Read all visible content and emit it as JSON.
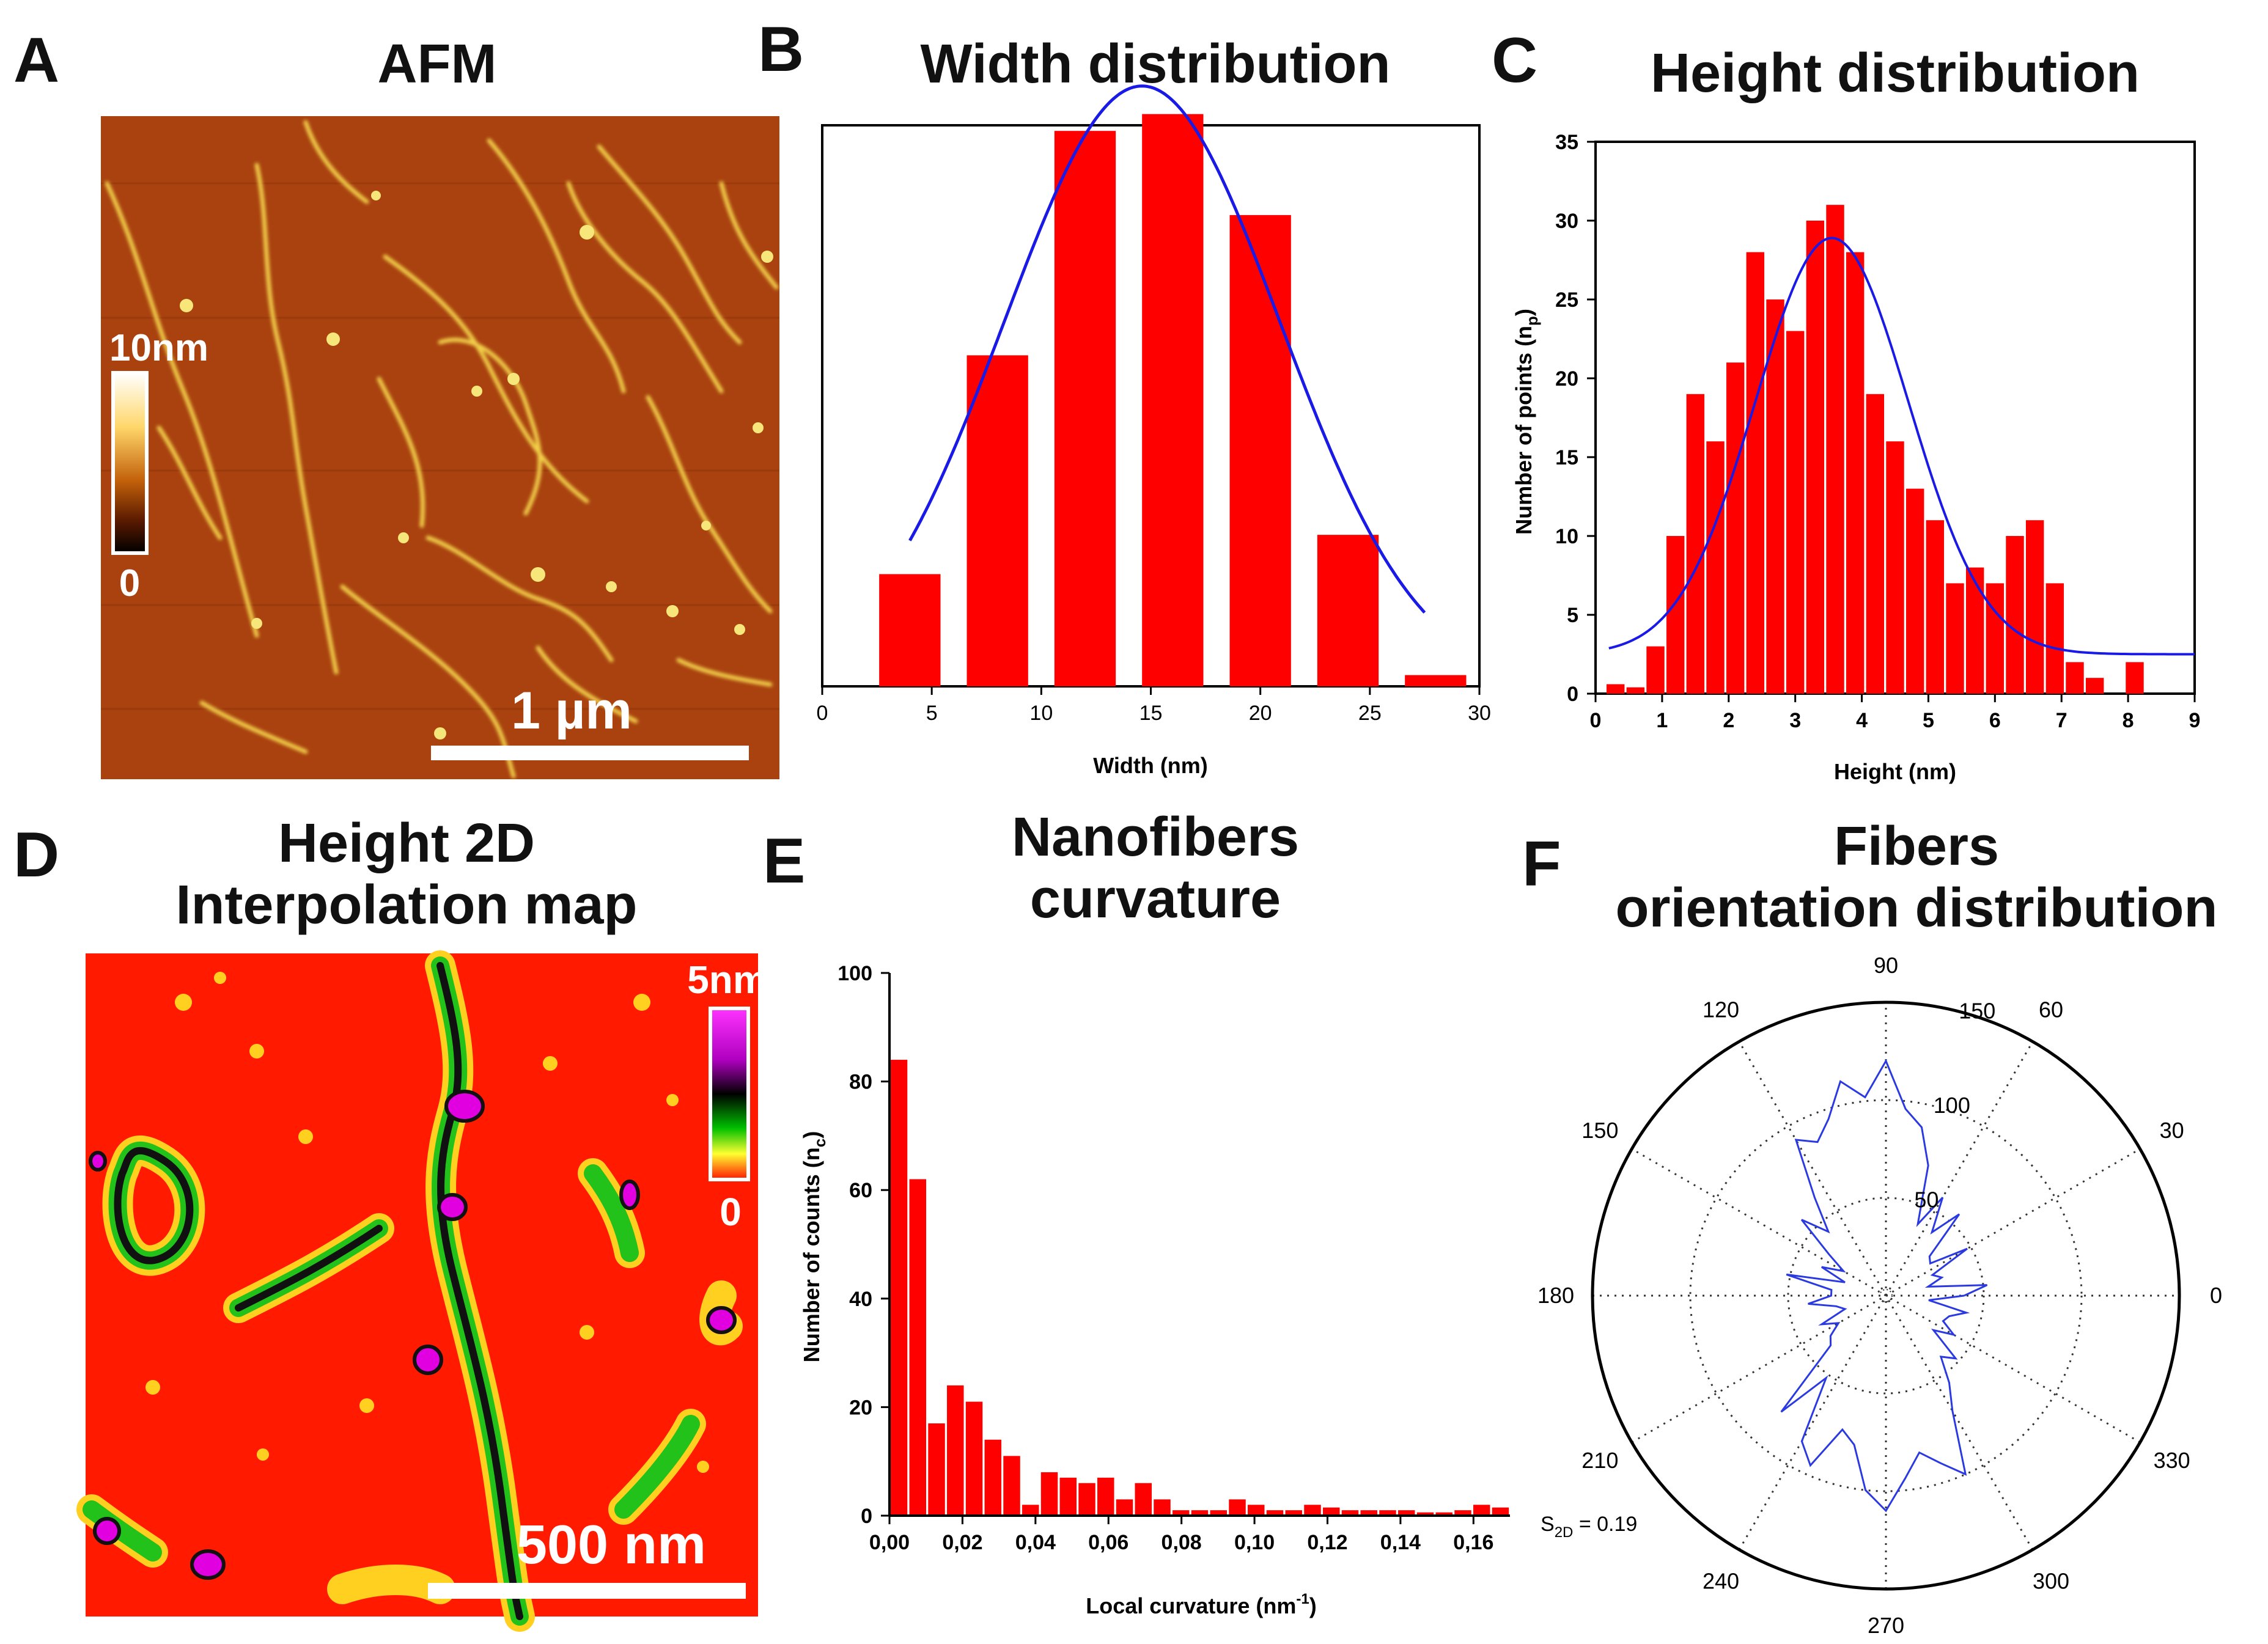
{
  "letters": {
    "a": "A",
    "b": "B",
    "c": "C",
    "d": "D",
    "e": "E",
    "f": "F"
  },
  "titles": {
    "a": "AFM",
    "b": "Width distribution",
    "c": "Height distribution",
    "d_line1": "Height 2D",
    "d_line2": "Interpolation map",
    "e_line1": "Nanofibers",
    "e_line2": "curvature",
    "f_line1": "Fibers",
    "f_line2": "orientation distribution"
  },
  "afm": {
    "colorbar_top": "10nm",
    "colorbar_bottom": "0",
    "scalebar": "1 µm"
  },
  "map2d": {
    "colorbar_top": "5nm",
    "colorbar_bottom": "0",
    "scalebar": "500 nm"
  },
  "chart_data": [
    {
      "id": "B",
      "type": "bar",
      "title": "Width distribution",
      "xlabel": "Width (nm)",
      "ylabel": "",
      "xlim": [
        0,
        30
      ],
      "ylim": [
        0,
        100
      ],
      "xticks": [
        0,
        5,
        10,
        15,
        20,
        25,
        30
      ],
      "bar_centers": [
        4,
        8,
        12,
        16,
        20,
        24,
        28
      ],
      "bar_width": 2.8,
      "values": [
        20,
        59,
        99,
        102,
        84,
        27,
        2
      ],
      "fit": {
        "type": "gaussian",
        "mu": 14.6,
        "sigma": 6.3,
        "amp": 107,
        "x_range": [
          4,
          27.5
        ],
        "color": "#1a1ae6"
      }
    },
    {
      "id": "C",
      "type": "bar",
      "title": "Height distribution",
      "xlabel": "Height (nm)",
      "ylabel": "Number of points (n",
      "ylabel_sub": "p",
      "ylabel_end": ")",
      "xlim": [
        0,
        9
      ],
      "ylim": [
        0,
        35
      ],
      "xticks": [
        0,
        1,
        2,
        3,
        4,
        5,
        6,
        7,
        8,
        9
      ],
      "yticks": [
        0,
        5,
        10,
        15,
        20,
        25,
        30,
        35
      ],
      "bar_width": 0.27,
      "x": [
        0.3,
        0.6,
        0.9,
        1.2,
        1.5,
        1.8,
        2.1,
        2.4,
        2.7,
        3.0,
        3.3,
        3.6,
        3.9,
        4.2,
        4.5,
        4.8,
        5.1,
        5.4,
        5.7,
        6.0,
        6.3,
        6.6,
        6.9,
        7.2,
        7.5,
        7.8,
        8.1,
        8.4,
        8.7
      ],
      "values": [
        0.6,
        0.4,
        3,
        10,
        19,
        16,
        21,
        28,
        25,
        23,
        30,
        31,
        28,
        19,
        16,
        13,
        11,
        7,
        8,
        7,
        10,
        11,
        7,
        2,
        1,
        0,
        2,
        0,
        0
      ],
      "fit": {
        "type": "gaussian",
        "mu": 3.55,
        "sigma": 1.15,
        "amp": 26.4,
        "base": 2.5,
        "x_range": [
          0.2,
          9
        ],
        "color": "#1a1ae6"
      }
    },
    {
      "id": "E",
      "type": "bar",
      "title": "Nanofibers curvature",
      "xlabel": "Local curvature (nm",
      "xlabel_sup": "-1",
      "xlabel_end": ")",
      "ylabel": "Number of counts (n",
      "ylabel_sub": "c",
      "ylabel_end": ")",
      "xlim": [
        0,
        0.17
      ],
      "ylim": [
        0,
        100
      ],
      "xticks": [
        "0,00",
        "0,02",
        "0,04",
        "0,06",
        "0,08",
        "0,10",
        "0,12",
        "0,14",
        "0,16"
      ],
      "yticks": [
        0,
        20,
        40,
        60,
        80,
        100
      ],
      "bar_width": 0.0046,
      "values": [
        84,
        62,
        17,
        24,
        21,
        14,
        11,
        2,
        8,
        7,
        6,
        7,
        3,
        6,
        3,
        1,
        1,
        1,
        3,
        2,
        1,
        1,
        2,
        1.5,
        1,
        1,
        1,
        1,
        0.6,
        0.6,
        1,
        2,
        1.5
      ]
    },
    {
      "id": "F",
      "type": "polar",
      "title": "Fibers orientation distribution",
      "angle_labels": [
        "0",
        "30",
        "60",
        "90",
        "120",
        "150",
        "180",
        "210",
        "240",
        "270",
        "300",
        "330"
      ],
      "radial_labels": [
        "50",
        "100",
        "150"
      ],
      "rmax": 150,
      "annotation": "S",
      "annotation_sub": "2D",
      "annotation_end": " = 0.19",
      "angles_deg": [
        0,
        6,
        12,
        18,
        24,
        30,
        36,
        42,
        48,
        54,
        60,
        66,
        72,
        78,
        84,
        90,
        96,
        102,
        108,
        114,
        120,
        126,
        132,
        138,
        144,
        150,
        156,
        162,
        168,
        174,
        180,
        186,
        192,
        198,
        204,
        210,
        216,
        222,
        228,
        234,
        240,
        246,
        252,
        258,
        264,
        270,
        276,
        282,
        288,
        294,
        300,
        306,
        312,
        318,
        324,
        330,
        336,
        342,
        348,
        354
      ],
      "radii": [
        40,
        52,
        22,
        30,
        26,
        48,
        28,
        30,
        56,
        40,
        58,
        40,
        70,
        88,
        96,
        120,
        102,
        112,
        95,
        86,
        92,
        62,
        44,
        58,
        36,
        25,
        36,
        22,
        52,
        28,
        28,
        40,
        26,
        22,
        36,
        28,
        35,
        38,
        80,
        52,
        86,
        95,
        72,
        78,
        100,
        110,
        94,
        82,
        90,
        100,
        68,
        55,
        42,
        48,
        30,
        40,
        32,
        34,
        42,
        22
      ],
      "color": "#2a3ae0"
    }
  ]
}
